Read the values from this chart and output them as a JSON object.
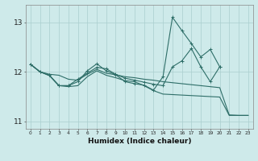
{
  "title": "",
  "xlabel": "Humidex (Indice chaleur)",
  "x": [
    0,
    1,
    2,
    3,
    4,
    5,
    6,
    7,
    8,
    9,
    10,
    11,
    12,
    13,
    14,
    15,
    16,
    17,
    18,
    19,
    20,
    21,
    22,
    23
  ],
  "line1": [
    12.15,
    12.0,
    11.95,
    11.93,
    11.85,
    11.83,
    11.95,
    12.05,
    11.97,
    11.94,
    11.9,
    11.88,
    11.85,
    11.83,
    11.8,
    11.78,
    11.76,
    11.74,
    11.72,
    11.7,
    11.68,
    11.13,
    11.12,
    11.12
  ],
  "line2": [
    12.15,
    12.0,
    11.92,
    11.72,
    11.7,
    11.72,
    11.9,
    12.02,
    11.93,
    11.88,
    11.82,
    11.8,
    11.72,
    11.62,
    11.55,
    11.54,
    11.53,
    11.52,
    11.51,
    11.5,
    11.49,
    11.12,
    11.12,
    11.12
  ],
  "line3": [
    12.15,
    12.0,
    11.93,
    11.72,
    11.72,
    11.85,
    11.97,
    12.09,
    12.06,
    11.95,
    11.87,
    11.83,
    11.79,
    11.75,
    11.72,
    12.1,
    12.22,
    12.47,
    12.1,
    11.8,
    12.1,
    null,
    null,
    null
  ],
  "line4": [
    12.15,
    12.0,
    11.93,
    11.72,
    11.72,
    11.8,
    12.02,
    12.16,
    12.02,
    11.94,
    11.8,
    11.76,
    11.73,
    11.63,
    11.9,
    13.1,
    12.83,
    12.57,
    12.3,
    12.45,
    12.1,
    null,
    null,
    null
  ],
  "line_color": "#2e6e68",
  "bg_color": "#ceeaea",
  "grid_color": "#aacece",
  "ylim": [
    10.85,
    13.35
  ],
  "yticks": [
    11,
    12,
    13
  ],
  "xlim": [
    -0.5,
    23.5
  ]
}
